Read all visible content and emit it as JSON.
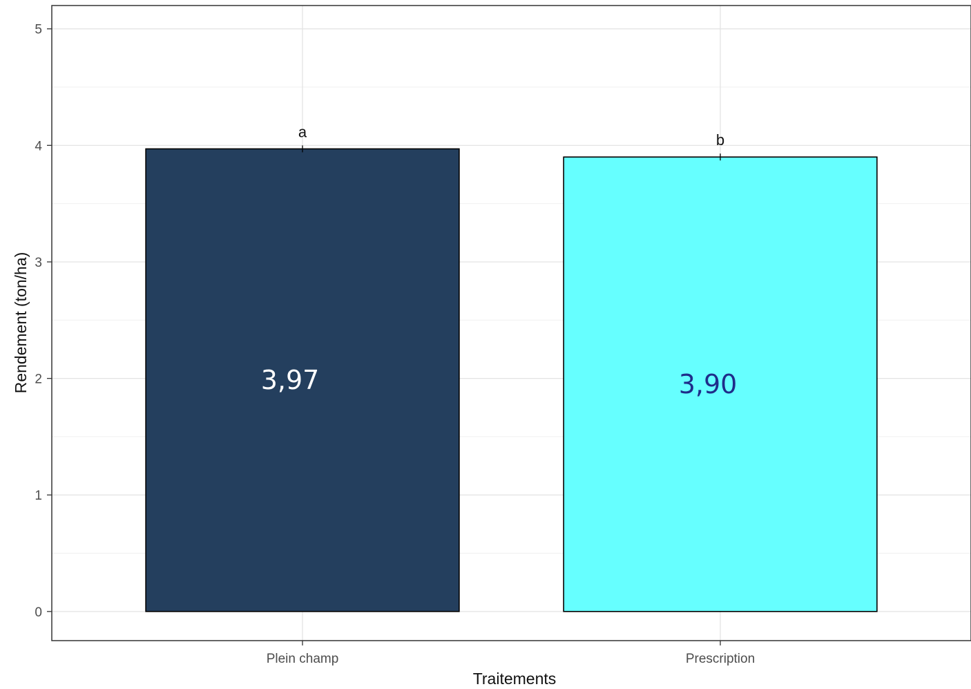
{
  "chart_data": {
    "type": "bar",
    "categories": [
      "Plein champ",
      "Prescription"
    ],
    "values": [
      3.97,
      3.9
    ],
    "value_labels": [
      "3,97",
      "3,90"
    ],
    "significance_letters": [
      "a",
      "b"
    ],
    "bar_colors": [
      "#243f5e",
      "#66ffff"
    ],
    "value_label_colors": [
      "#ffffff",
      "#1f2d8a"
    ],
    "xlabel": "Traitements",
    "ylabel": "Rendement (ton/ha)",
    "ylim": [
      -0.25,
      5.2
    ],
    "yticks": [
      0,
      1,
      2,
      3,
      4,
      5
    ],
    "ytick_labels": [
      "0",
      "1",
      "2",
      "3",
      "4",
      "5"
    ],
    "grid": true,
    "legend": "none"
  }
}
